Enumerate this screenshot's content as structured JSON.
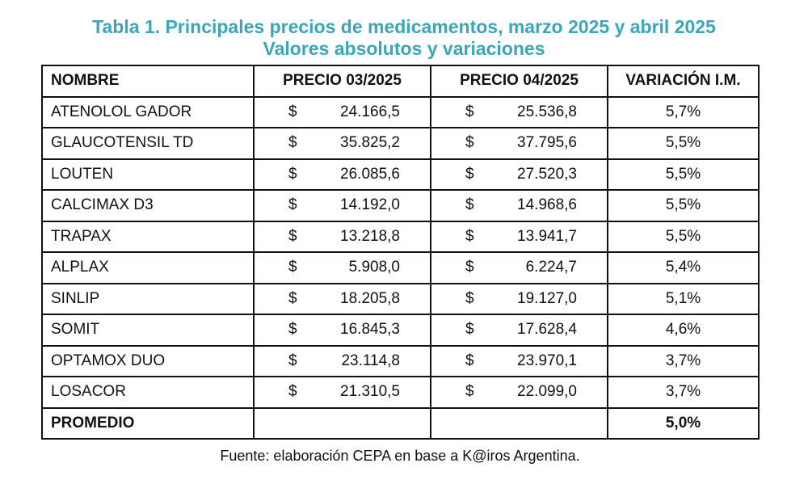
{
  "title": {
    "line1": "Tabla 1. Principales precios de medicamentos, marzo 2025 y abril 2025",
    "line2": "Valores absolutos y variaciones"
  },
  "table": {
    "headers": [
      "NOMBRE",
      "PRECIO 03/2025",
      "PRECIO 04/2025",
      "VARIACIÓN I.M."
    ],
    "currency": "$",
    "rows": [
      {
        "name": "ATENOLOL GADOR",
        "price_03": "24.166,5",
        "price_04": "25.536,8",
        "variation": "5,7%"
      },
      {
        "name": "GLAUCOTENSIL TD",
        "price_03": "35.825,2",
        "price_04": "37.795,6",
        "variation": "5,5%"
      },
      {
        "name": "LOUTEN",
        "price_03": "26.085,6",
        "price_04": "27.520,3",
        "variation": "5,5%"
      },
      {
        "name": "CALCIMAX D3",
        "price_03": "14.192,0",
        "price_04": "14.968,6",
        "variation": "5,5%"
      },
      {
        "name": "TRAPAX",
        "price_03": "13.218,8",
        "price_04": "13.941,7",
        "variation": "5,5%"
      },
      {
        "name": "ALPLAX",
        "price_03": "5.908,0",
        "price_04": "6.224,7",
        "variation": "5,4%"
      },
      {
        "name": "SINLIP",
        "price_03": "18.205,8",
        "price_04": "19.127,0",
        "variation": "5,1%"
      },
      {
        "name": "SOMIT",
        "price_03": "16.845,3",
        "price_04": "17.628,4",
        "variation": "4,6%"
      },
      {
        "name": "OPTAMOX DUO",
        "price_03": "23.114,8",
        "price_04": "23.970,1",
        "variation": "3,7%"
      },
      {
        "name": "LOSACOR",
        "price_03": "21.310,5",
        "price_04": "22.099,0",
        "variation": "3,7%"
      }
    ],
    "average": {
      "label": "PROMEDIO",
      "variation": "5,0%"
    }
  },
  "source": "Fuente: elaboración CEPA en base a K@iros Argentina.",
  "colors": {
    "title": "#3aa6b9",
    "text": "#111111",
    "border": "#111111"
  }
}
